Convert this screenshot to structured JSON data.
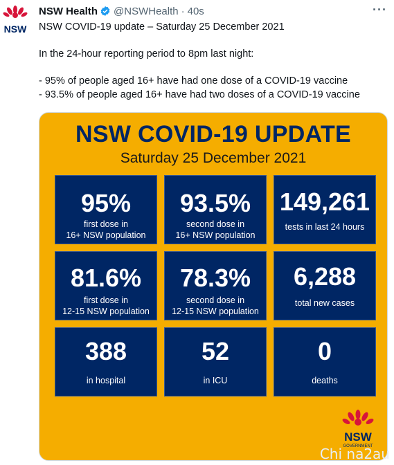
{
  "tweet": {
    "author_name": "NSW Health",
    "handle": "@NSWHealth",
    "time": "40s",
    "separator": "·",
    "more_label": "···",
    "avatar_text": "NSW",
    "lines": [
      "NSW COVID-19 update – Saturday 25 December 2021",
      "",
      "In the 24-hour reporting period to 8pm last night:",
      "",
      "- 95% of people aged 16+ have had one dose of a COVID-19 vaccine",
      "- 93.5% of people aged 16+ have had two doses of a COVID-19 vaccine"
    ]
  },
  "card": {
    "title": "NSW COVID-19 UPDATE",
    "date": "Saturday 25 December 2021",
    "tiles": [
      {
        "value": "95%",
        "label": "first dose in\n16+ NSW population"
      },
      {
        "value": "93.5%",
        "label": "second dose in\n16+ NSW population"
      },
      {
        "value": "149,261",
        "label": "tests in last 24 hours"
      },
      {
        "value": "81.6%",
        "label": "first dose in\n12-15 NSW population"
      },
      {
        "value": "78.3%",
        "label": "second dose in\n12-15 NSW population"
      },
      {
        "value": "6,288",
        "label": "total new cases"
      },
      {
        "value": "388",
        "label": "in hospital"
      },
      {
        "value": "52",
        "label": "in ICU"
      },
      {
        "value": "0",
        "label": "deaths"
      }
    ],
    "logo_text": "NSW",
    "logo_subtext": "GOVERNMENT"
  },
  "watermark": "Chi na2au",
  "colors": {
    "card_bg": "#f5ad00",
    "tile_bg": "#002664",
    "logo_red": "#d7153a",
    "verified": "#1d9bf0"
  }
}
